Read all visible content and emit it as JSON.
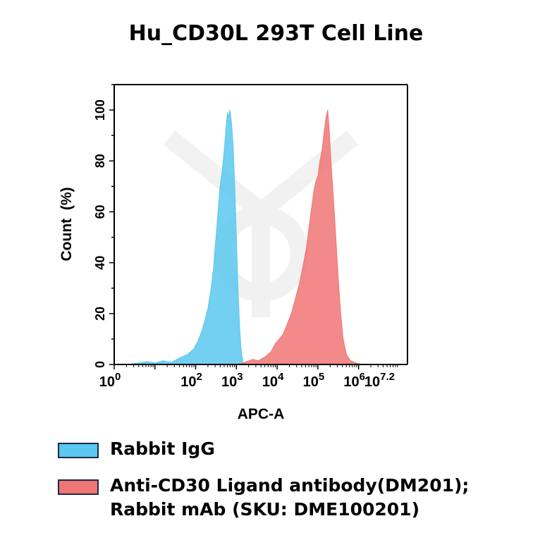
{
  "chart_data": {
    "type": "area",
    "title": "Hu_CD30L 293T Cell Line",
    "xlabel": "APC-A",
    "ylabel": "Count  (%)",
    "xscale": "log",
    "xlim": [
      0,
      7.2
    ],
    "ylim": [
      0,
      110
    ],
    "x_tick_labels": [
      {
        "base": "10",
        "exp": "0",
        "pos": 0
      },
      {
        "base": "10",
        "exp": "2",
        "pos": 2
      },
      {
        "base": "10",
        "exp": "3",
        "pos": 3
      },
      {
        "base": "10",
        "exp": "4",
        "pos": 4
      },
      {
        "base": "10",
        "exp": "5",
        "pos": 5
      },
      {
        "base": "10",
        "exp": "6",
        "pos": 6
      },
      {
        "base": "10",
        "exp": "7.2",
        "pos": 7.2
      }
    ],
    "y_ticks": [
      0,
      20,
      40,
      60,
      80,
      100
    ],
    "grid": false,
    "legend_position": "bottom",
    "series": [
      {
        "name": "Rabbit IgG",
        "color": "#5bc8ef",
        "points": [
          [
            0.3,
            0
          ],
          [
            0.55,
            0.5
          ],
          [
            0.8,
            1.2
          ],
          [
            1.0,
            0.6
          ],
          [
            1.2,
            1.5
          ],
          [
            1.4,
            0.8
          ],
          [
            1.6,
            2.5
          ],
          [
            1.8,
            4
          ],
          [
            1.95,
            6
          ],
          [
            2.05,
            9
          ],
          [
            2.15,
            13
          ],
          [
            2.22,
            17
          ],
          [
            2.3,
            22
          ],
          [
            2.38,
            30
          ],
          [
            2.44,
            38
          ],
          [
            2.5,
            50
          ],
          [
            2.55,
            60
          ],
          [
            2.6,
            70
          ],
          [
            2.65,
            76
          ],
          [
            2.7,
            84
          ],
          [
            2.74,
            92
          ],
          [
            2.78,
            99
          ],
          [
            2.8,
            97
          ],
          [
            2.84,
            100
          ],
          [
            2.88,
            95
          ],
          [
            2.92,
            86
          ],
          [
            2.96,
            70
          ],
          [
            3.0,
            50
          ],
          [
            3.04,
            30
          ],
          [
            3.08,
            14
          ],
          [
            3.12,
            5
          ],
          [
            3.16,
            1
          ],
          [
            3.2,
            0
          ]
        ]
      },
      {
        "name": "Anti-CD30 Ligand antibody(DM201); Rabbit mAb (SKU: DME100201)",
        "color": "#f07575",
        "points": [
          [
            3.0,
            0
          ],
          [
            3.2,
            0.8
          ],
          [
            3.4,
            2
          ],
          [
            3.55,
            1.5
          ],
          [
            3.7,
            3
          ],
          [
            3.85,
            5
          ],
          [
            3.95,
            8
          ],
          [
            4.05,
            10
          ],
          [
            4.15,
            12
          ],
          [
            4.25,
            16
          ],
          [
            4.35,
            20
          ],
          [
            4.45,
            26
          ],
          [
            4.55,
            32
          ],
          [
            4.65,
            40
          ],
          [
            4.72,
            46
          ],
          [
            4.8,
            56
          ],
          [
            4.85,
            62
          ],
          [
            4.9,
            68
          ],
          [
            4.95,
            72
          ],
          [
            5.0,
            74
          ],
          [
            5.05,
            80
          ],
          [
            5.1,
            84
          ],
          [
            5.15,
            91
          ],
          [
            5.2,
            97
          ],
          [
            5.24,
            100
          ],
          [
            5.28,
            92
          ],
          [
            5.32,
            80
          ],
          [
            5.38,
            66
          ],
          [
            5.44,
            50
          ],
          [
            5.5,
            34
          ],
          [
            5.56,
            20
          ],
          [
            5.62,
            10
          ],
          [
            5.7,
            4
          ],
          [
            5.8,
            1.5
          ],
          [
            5.95,
            0.5
          ],
          [
            6.1,
            0
          ]
        ]
      }
    ]
  },
  "legend": [
    {
      "label": "Rabbit IgG",
      "color": "#5bc8ef"
    },
    {
      "label": "Anti-CD30 Ligand antibody(DM201);\nRabbit mAb (SKU: DME100201)",
      "color": "#f07575"
    }
  ]
}
